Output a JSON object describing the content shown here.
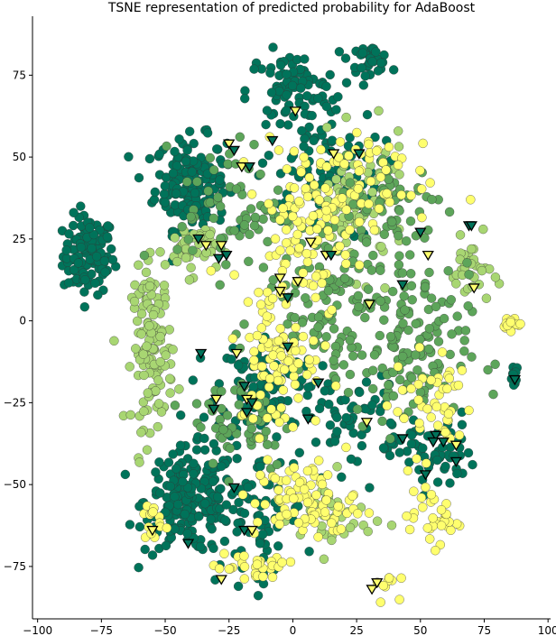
{
  "chart_data": {
    "type": "scatter",
    "title": "TSNE representation of predicted probability for AdaBoost",
    "xlabel": "",
    "ylabel": "",
    "xlim": [
      -102,
      101
    ],
    "ylim": [
      -91,
      93
    ],
    "xticks": [
      -100,
      -75,
      -50,
      -25,
      0,
      25,
      50,
      75,
      100
    ],
    "yticks": [
      -75,
      -50,
      -25,
      0,
      25,
      50,
      75
    ],
    "grid": false,
    "legend": "none",
    "colors": {
      "dark_green": "#00735a",
      "mid_green": "#5da55a",
      "light_green": "#a8d672",
      "yellow": "#ffff6e",
      "edge": "#333333"
    },
    "clusters": [
      {
        "class": "dark_green",
        "cx": -80,
        "cy": 20,
        "sx": 5,
        "sy": 6,
        "n": 120
      },
      {
        "class": "dark_green",
        "cx": -40,
        "cy": 42,
        "sx": 7,
        "sy": 7,
        "n": 180
      },
      {
        "class": "dark_green",
        "cx": -40,
        "cy": -55,
        "sx": 9,
        "sy": 8,
        "n": 200
      },
      {
        "class": "dark_green",
        "cx": 30,
        "cy": 80,
        "sx": 4,
        "sy": 2,
        "n": 35
      },
      {
        "class": "dark_green",
        "cx": 0,
        "cy": 70,
        "sx": 9,
        "sy": 6,
        "n": 80
      },
      {
        "class": "dark_green",
        "cx": -10,
        "cy": -20,
        "sx": 10,
        "sy": 8,
        "n": 110
      },
      {
        "class": "dark_green",
        "cx": 10,
        "cy": 45,
        "sx": 12,
        "sy": 10,
        "n": 90
      },
      {
        "class": "dark_green",
        "cx": 55,
        "cy": -40,
        "sx": 8,
        "sy": 6,
        "n": 60
      },
      {
        "class": "dark_green",
        "cx": 87,
        "cy": -18,
        "sx": 1,
        "sy": 2,
        "n": 12
      },
      {
        "class": "dark_green",
        "cx": 25,
        "cy": -30,
        "sx": 10,
        "sy": 8,
        "n": 60
      },
      {
        "class": "dark_green",
        "cx": -15,
        "cy": -60,
        "sx": 10,
        "sy": 10,
        "n": 70
      },
      {
        "class": "light_green",
        "cx": -55,
        "cy": -8,
        "sx": 4,
        "sy": 12,
        "n": 130
      },
      {
        "class": "light_green",
        "cx": -40,
        "cy": 22,
        "sx": 5,
        "sy": 4,
        "n": 45
      },
      {
        "class": "light_green",
        "cx": 70,
        "cy": 15,
        "sx": 4,
        "sy": 5,
        "n": 35
      },
      {
        "class": "light_green",
        "cx": 25,
        "cy": 35,
        "sx": 10,
        "sy": 10,
        "n": 90
      },
      {
        "class": "light_green",
        "cx": 15,
        "cy": -60,
        "sx": 8,
        "sy": 6,
        "n": 40
      },
      {
        "class": "mid_green",
        "cx": 15,
        "cy": 10,
        "sx": 14,
        "sy": 12,
        "n": 130
      },
      {
        "class": "mid_green",
        "cx": 45,
        "cy": -10,
        "sx": 12,
        "sy": 12,
        "n": 130
      },
      {
        "class": "mid_green",
        "cx": -25,
        "cy": 35,
        "sx": 10,
        "sy": 10,
        "n": 60
      },
      {
        "class": "mid_green",
        "cx": -20,
        "cy": -30,
        "sx": 10,
        "sy": 8,
        "n": 60
      },
      {
        "class": "mid_green",
        "cx": 40,
        "cy": 35,
        "sx": 10,
        "sy": 8,
        "n": 60
      },
      {
        "class": "yellow",
        "cx": -5,
        "cy": -10,
        "sx": 8,
        "sy": 12,
        "n": 90
      },
      {
        "class": "yellow",
        "cx": 5,
        "cy": 30,
        "sx": 10,
        "sy": 12,
        "n": 110
      },
      {
        "class": "yellow",
        "cx": 5,
        "cy": -55,
        "sx": 10,
        "sy": 6,
        "n": 90
      },
      {
        "class": "yellow",
        "cx": 85,
        "cy": -1,
        "sx": 2,
        "sy": 1,
        "n": 14
      },
      {
        "class": "yellow",
        "cx": 55,
        "cy": -60,
        "sx": 5,
        "sy": 4,
        "n": 35
      },
      {
        "class": "yellow",
        "cx": -55,
        "cy": -62,
        "sx": 2,
        "sy": 3,
        "n": 14
      },
      {
        "class": "yellow",
        "cx": -15,
        "cy": -75,
        "sx": 8,
        "sy": 3,
        "n": 30
      },
      {
        "class": "yellow",
        "cx": 35,
        "cy": -80,
        "sx": 3,
        "sy": 2,
        "n": 10
      },
      {
        "class": "yellow",
        "cx": 30,
        "cy": 45,
        "sx": 12,
        "sy": 8,
        "n": 45
      },
      {
        "class": "yellow",
        "cx": 55,
        "cy": -25,
        "sx": 8,
        "sy": 8,
        "n": 45
      }
    ],
    "triangles": [
      {
        "x": -25,
        "y": 54,
        "class": "yellow"
      },
      {
        "x": -23,
        "y": 52,
        "class": "dark_green"
      },
      {
        "x": -20,
        "y": 47,
        "class": "yellow"
      },
      {
        "x": -17,
        "y": 47,
        "class": "dark_green"
      },
      {
        "x": -8,
        "y": 55,
        "class": "dark_green"
      },
      {
        "x": 1,
        "y": 64,
        "class": "yellow"
      },
      {
        "x": 16,
        "y": 51,
        "class": "yellow"
      },
      {
        "x": 26,
        "y": 51,
        "class": "dark_green"
      },
      {
        "x": -37,
        "y": 25,
        "class": "dark_green"
      },
      {
        "x": -34,
        "y": 23,
        "class": "yellow"
      },
      {
        "x": -28,
        "y": 23,
        "class": "yellow"
      },
      {
        "x": -29,
        "y": 19,
        "class": "dark_green"
      },
      {
        "x": -26,
        "y": 20,
        "class": "dark_green"
      },
      {
        "x": 7,
        "y": 24,
        "class": "yellow"
      },
      {
        "x": 13,
        "y": 20,
        "class": "yellow"
      },
      {
        "x": 15,
        "y": 20,
        "class": "dark_green"
      },
      {
        "x": 50,
        "y": 27,
        "class": "dark_green"
      },
      {
        "x": 53,
        "y": 20,
        "class": "yellow"
      },
      {
        "x": 69,
        "y": 29,
        "class": "dark_green"
      },
      {
        "x": 70,
        "y": 29,
        "class": "dark_green"
      },
      {
        "x": 71,
        "y": 10,
        "class": "yellow"
      },
      {
        "x": -5,
        "y": 13,
        "class": "yellow"
      },
      {
        "x": 2,
        "y": 12,
        "class": "yellow"
      },
      {
        "x": -5,
        "y": 9,
        "class": "yellow"
      },
      {
        "x": -2,
        "y": 7,
        "class": "dark_green"
      },
      {
        "x": 30,
        "y": 5,
        "class": "yellow"
      },
      {
        "x": 43,
        "y": 11,
        "class": "dark_green"
      },
      {
        "x": -36,
        "y": -10,
        "class": "dark_green"
      },
      {
        "x": -22,
        "y": -10,
        "class": "yellow"
      },
      {
        "x": -2,
        "y": -8,
        "class": "dark_green"
      },
      {
        "x": -19,
        "y": -20,
        "class": "dark_green"
      },
      {
        "x": 10,
        "y": -19,
        "class": "dark_green"
      },
      {
        "x": -30,
        "y": -24,
        "class": "yellow"
      },
      {
        "x": -18,
        "y": -24,
        "class": "yellow"
      },
      {
        "x": -16,
        "y": -25,
        "class": "dark_green"
      },
      {
        "x": -31,
        "y": -27,
        "class": "dark_green"
      },
      {
        "x": -18,
        "y": -28,
        "class": "dark_green"
      },
      {
        "x": 6,
        "y": -30,
        "class": "dark_green"
      },
      {
        "x": 29,
        "y": -31,
        "class": "yellow"
      },
      {
        "x": 43,
        "y": -36,
        "class": "dark_green"
      },
      {
        "x": 56,
        "y": -35,
        "class": "dark_green"
      },
      {
        "x": 55,
        "y": -37,
        "class": "dark_green"
      },
      {
        "x": 59,
        "y": -37,
        "class": "dark_green"
      },
      {
        "x": 64,
        "y": -38,
        "class": "yellow"
      },
      {
        "x": 64,
        "y": -43,
        "class": "dark_green"
      },
      {
        "x": 52,
        "y": -47,
        "class": "dark_green"
      },
      {
        "x": 87,
        "y": -18,
        "class": "dark_green"
      },
      {
        "x": -23,
        "y": -51,
        "class": "dark_green"
      },
      {
        "x": -55,
        "y": -64,
        "class": "yellow"
      },
      {
        "x": -41,
        "y": -68,
        "class": "dark_green"
      },
      {
        "x": -19,
        "y": -64,
        "class": "dark_green"
      },
      {
        "x": -16,
        "y": -64,
        "class": "yellow"
      },
      {
        "x": -28,
        "y": -79,
        "class": "yellow"
      },
      {
        "x": 31,
        "y": -82,
        "class": "yellow"
      },
      {
        "x": 33,
        "y": -80,
        "class": "yellow"
      }
    ]
  }
}
